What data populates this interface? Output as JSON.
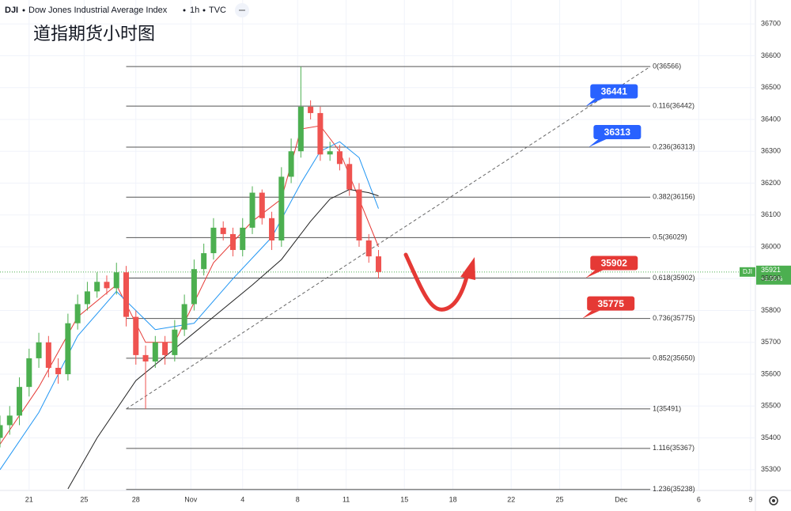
{
  "chart_data": {
    "type": "candlestick",
    "header": {
      "symbol": "DJI",
      "name": "Dow Jones Industrial Average Index",
      "interval": "1h",
      "source": "TVC"
    },
    "title": "道指期货小时图",
    "xlim": [
      0,
      233.5
    ],
    "ylim": [
      35235,
      36775
    ],
    "xticks": [
      {
        "value": 9,
        "label": "21"
      },
      {
        "value": 26,
        "label": "25"
      },
      {
        "value": 42,
        "label": "28"
      },
      {
        "value": 59,
        "label": "Nov"
      },
      {
        "value": 75,
        "label": "4"
      },
      {
        "value": 92,
        "label": "8"
      },
      {
        "value": 107,
        "label": "11"
      },
      {
        "value": 125,
        "label": "15"
      },
      {
        "value": 140,
        "label": "18"
      },
      {
        "value": 158,
        "label": "22"
      },
      {
        "value": 173,
        "label": "25"
      },
      {
        "value": 192,
        "label": "Dec"
      },
      {
        "value": 216,
        "label": "6"
      },
      {
        "value": 232,
        "label": "9"
      }
    ],
    "yticks": [
      35300,
      35400,
      35500,
      35600,
      35700,
      35800,
      35900,
      36000,
      36100,
      36200,
      36300,
      36400,
      36500,
      36600,
      36700
    ],
    "up_color": "#4caf50",
    "down_color": "#ef5350",
    "candles": {
      "x": [
        0,
        3,
        6,
        9,
        12,
        15,
        18,
        21,
        24,
        27,
        30,
        33,
        36,
        39,
        42,
        45,
        48,
        51,
        54,
        57,
        60,
        63,
        66,
        69,
        72,
        75,
        78,
        81,
        84,
        87,
        90,
        93,
        96,
        99,
        102,
        105,
        108,
        111,
        114,
        117
      ],
      "open": [
        35400,
        35440,
        35470,
        35560,
        35650,
        35700,
        35620,
        35600,
        35760,
        35820,
        35860,
        35890,
        35870,
        35920,
        35780,
        35660,
        35640,
        35700,
        35660,
        35740,
        35820,
        35930,
        35980,
        36060,
        36040,
        35990,
        36060,
        36170,
        36090,
        36020,
        36220,
        36300,
        36440,
        36420,
        36290,
        36300,
        36260,
        36180,
        36020,
        35970
      ],
      "high": [
        35470,
        35500,
        35590,
        35680,
        35730,
        35720,
        35650,
        35790,
        35850,
        35890,
        35920,
        35910,
        35950,
        35940,
        35800,
        35690,
        35720,
        35720,
        35770,
        35850,
        35960,
        36010,
        36090,
        36080,
        36060,
        36090,
        36190,
        36180,
        36110,
        36250,
        36340,
        36566,
        36460,
        36440,
        36330,
        36320,
        36280,
        36200,
        36040,
        35990
      ],
      "low": [
        35370,
        35410,
        35440,
        35530,
        35620,
        35590,
        35570,
        35580,
        35740,
        35800,
        35840,
        35850,
        35850,
        35750,
        35630,
        35491,
        35620,
        35630,
        35640,
        35720,
        35800,
        35910,
        35960,
        36020,
        35970,
        35970,
        36040,
        36070,
        35990,
        36000,
        36200,
        36280,
        36400,
        36270,
        36270,
        36240,
        36160,
        36000,
        35950,
        35900
      ],
      "close": [
        35440,
        35470,
        35560,
        35650,
        35700,
        35620,
        35600,
        35760,
        35820,
        35860,
        35890,
        35870,
        35920,
        35780,
        35660,
        35640,
        35700,
        35660,
        35740,
        35820,
        35930,
        35980,
        36060,
        36040,
        35990,
        36060,
        36170,
        36090,
        36020,
        36220,
        36300,
        36440,
        36420,
        36290,
        36300,
        36260,
        36180,
        36020,
        35970,
        35921
      ]
    },
    "series": [
      {
        "color": "#e53935",
        "x": [
          0,
          12,
          24,
          36,
          45,
          54,
          66,
          78,
          87,
          93,
          99,
          105,
          111,
          117
        ],
        "values": [
          35380,
          35560,
          35780,
          35880,
          35700,
          35700,
          35950,
          36080,
          36150,
          36370,
          36380,
          36300,
          36150,
          36000
        ]
      },
      {
        "color": "#2196f3",
        "x": [
          0,
          12,
          24,
          36,
          48,
          60,
          72,
          84,
          93,
          99,
          105,
          111,
          117
        ],
        "values": [
          35300,
          35480,
          35720,
          35860,
          35740,
          35760,
          35900,
          36030,
          36200,
          36300,
          36330,
          36280,
          36120
        ]
      },
      {
        "color": "#222222",
        "x": [
          21,
          30,
          42,
          54,
          66,
          78,
          87,
          96,
          102,
          108,
          114,
          117
        ],
        "values": [
          35240,
          35400,
          35580,
          35680,
          35780,
          35880,
          35960,
          36080,
          36150,
          36180,
          36170,
          36160
        ]
      }
    ],
    "fib_x": [
      39,
      201
    ],
    "fib": [
      {
        "label": "0(36566)",
        "value": 36566
      },
      {
        "label": "0.116(36442)",
        "value": 36442
      },
      {
        "label": "0.236(36313)",
        "value": 36313
      },
      {
        "label": "0.382(36156)",
        "value": 36156
      },
      {
        "label": "0.5(36029)",
        "value": 36029
      },
      {
        "label": "0.618(35902)",
        "value": 35902
      },
      {
        "label": "0.736(35775)",
        "value": 35775
      },
      {
        "label": "0.852(35650)",
        "value": 35650
      },
      {
        "label": "1(35491)",
        "value": 35491
      },
      {
        "label": "1.116(35367)",
        "value": 35367
      },
      {
        "label": "1.236(35238)",
        "value": 35238
      }
    ],
    "trendline": {
      "x": [
        39,
        201
      ],
      "values": [
        35491,
        36566
      ]
    },
    "callouts": [
      {
        "value": 36441,
        "x": 181,
        "color": "#2962ff"
      },
      {
        "value": 36313,
        "x": 182,
        "color": "#2962ff"
      },
      {
        "value": 35902,
        "x": 181,
        "color": "#e53935"
      },
      {
        "value": 35775,
        "x": 180,
        "color": "#e53935"
      }
    ],
    "last": {
      "symbol": "DJI",
      "value": 35921,
      "change": "+1.50%"
    }
  }
}
